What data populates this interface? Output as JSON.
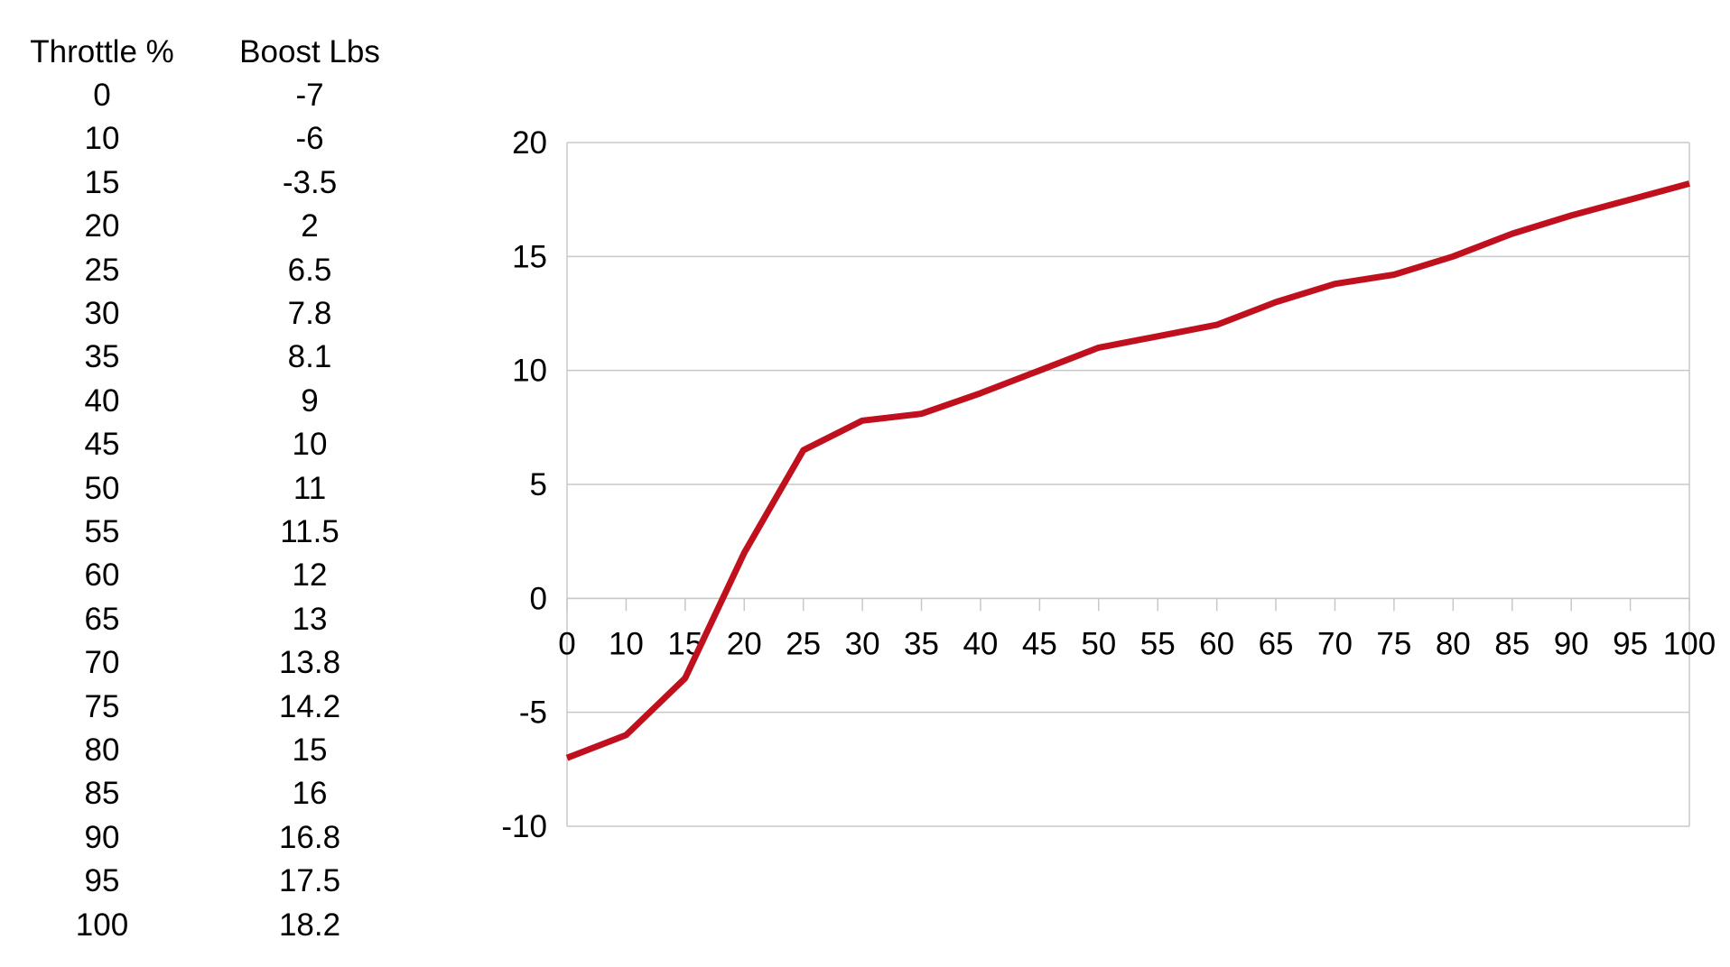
{
  "table": {
    "headers": [
      "Throttle %",
      "Boost Lbs"
    ],
    "rows": [
      [
        "0",
        "-7"
      ],
      [
        "10",
        "-6"
      ],
      [
        "15",
        "-3.5"
      ],
      [
        "20",
        "2"
      ],
      [
        "25",
        "6.5"
      ],
      [
        "30",
        "7.8"
      ],
      [
        "35",
        "8.1"
      ],
      [
        "40",
        "9"
      ],
      [
        "45",
        "10"
      ],
      [
        "50",
        "11"
      ],
      [
        "55",
        "11.5"
      ],
      [
        "60",
        "12"
      ],
      [
        "65",
        "13"
      ],
      [
        "70",
        "13.8"
      ],
      [
        "75",
        "14.2"
      ],
      [
        "80",
        "15"
      ],
      [
        "85",
        "16"
      ],
      [
        "90",
        "16.8"
      ],
      [
        "95",
        "17.5"
      ],
      [
        "100",
        "18.2"
      ]
    ]
  },
  "chart_data": {
    "type": "line",
    "title": "",
    "xlabel": "",
    "ylabel": "",
    "categories": [
      "0",
      "10",
      "15",
      "20",
      "25",
      "30",
      "35",
      "40",
      "45",
      "50",
      "55",
      "60",
      "65",
      "70",
      "75",
      "80",
      "85",
      "90",
      "95",
      "100"
    ],
    "series": [
      {
        "values": [
          -7,
          -6,
          -3.5,
          2,
          6.5,
          7.8,
          8.1,
          9,
          10,
          11,
          11.5,
          12,
          13,
          13.8,
          14.2,
          15,
          16,
          16.8,
          17.5,
          18.2
        ],
        "color": "#c0101e"
      }
    ],
    "ylim": [
      -10,
      20
    ],
    "yticks": [
      -10,
      -5,
      0,
      5,
      10,
      15,
      20
    ],
    "grid": true,
    "legend": "none",
    "gridline_color": "#c8c8c8"
  }
}
